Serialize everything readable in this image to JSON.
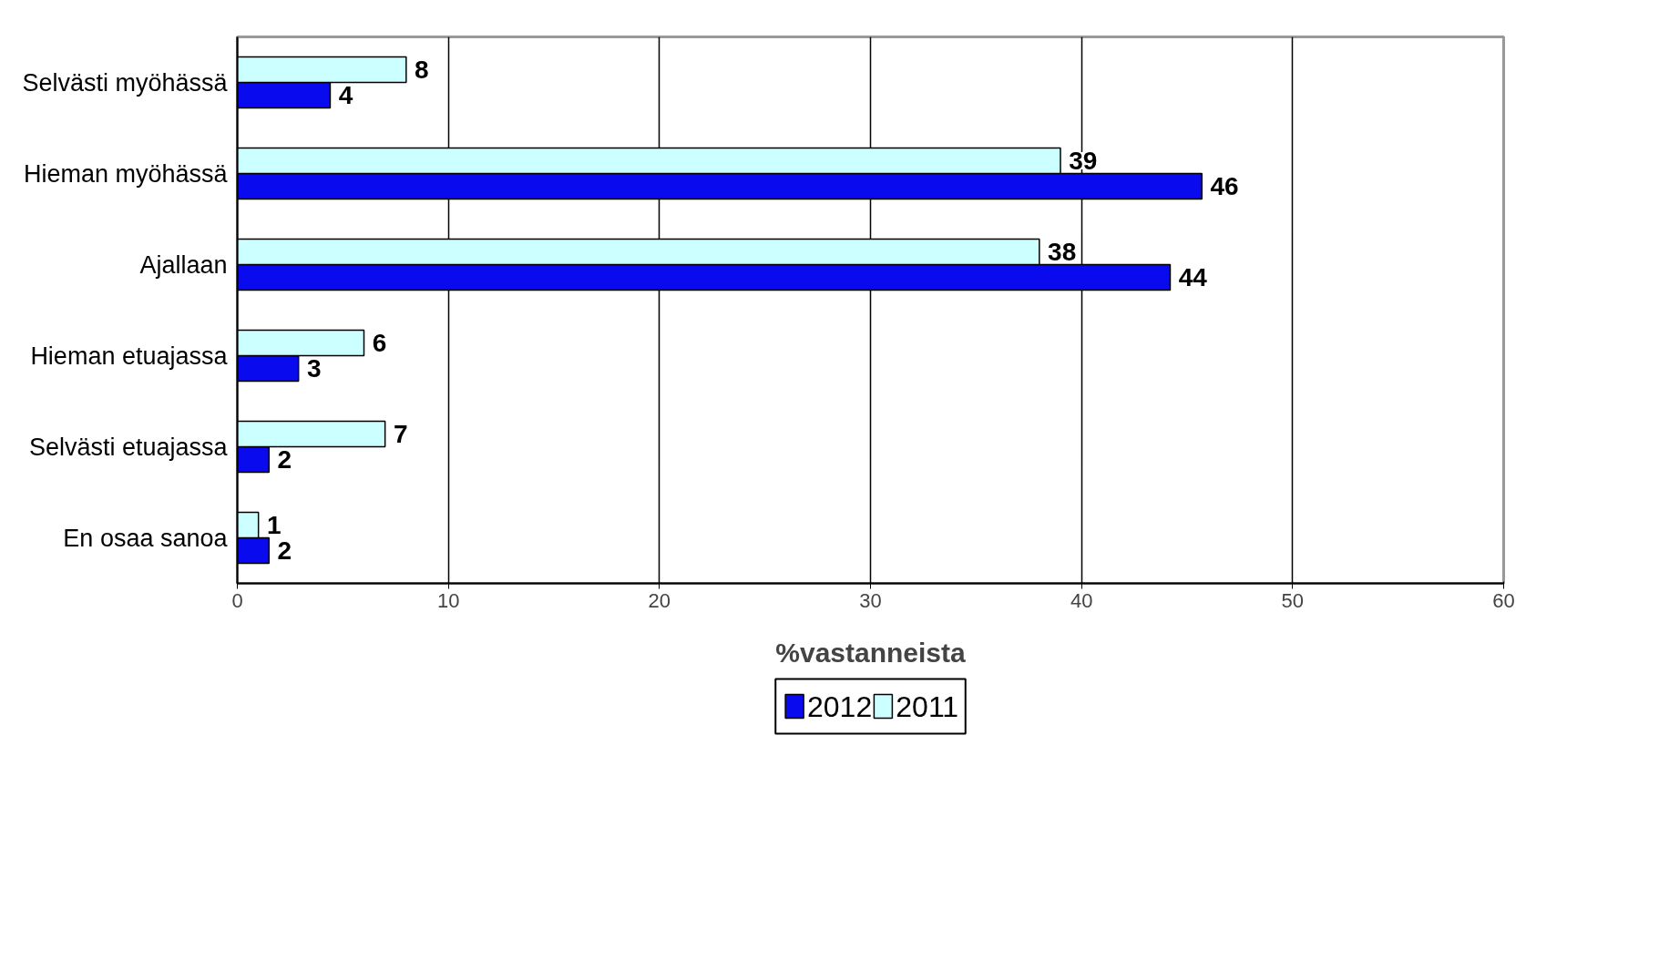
{
  "chart_data": {
    "type": "bar",
    "orientation": "horizontal",
    "categories": [
      "Selvästi myöhässä",
      "Hieman myöhässä",
      "Ajallaan",
      "Hieman etuajassa",
      "Selvästi etuajassa",
      "En osaa sanoa"
    ],
    "series": [
      {
        "name": "2012",
        "color": "#0a0aee",
        "values": [
          4.4,
          45.7,
          44.2,
          2.9,
          1.5,
          1.5
        ],
        "value_labels": [
          "4",
          "46",
          "44",
          "3",
          "2",
          "2"
        ]
      },
      {
        "name": "2011",
        "color": "#ccffff",
        "values": [
          8,
          39,
          38,
          6,
          7,
          1
        ],
        "value_labels": [
          "8",
          "39",
          "38",
          "6",
          "7",
          "1"
        ]
      }
    ],
    "xlabel": "%vastanneista",
    "xlim": [
      0,
      60
    ],
    "xticks": [
      0,
      10,
      20,
      30,
      40,
      50,
      60
    ],
    "grid": "x",
    "legend": "bottom"
  }
}
